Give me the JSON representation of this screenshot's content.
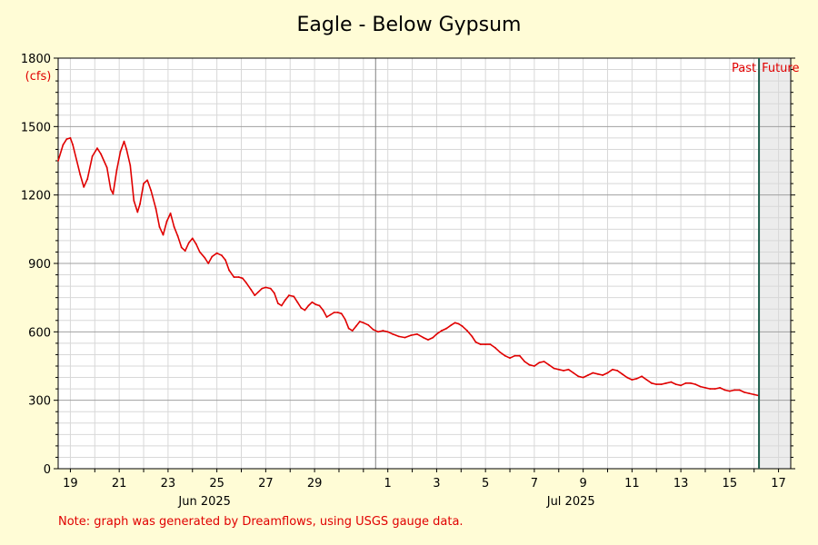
{
  "colors": {
    "background": "#fffcd6",
    "plot_background": "#ffffff",
    "future_background": "#ececec",
    "series_line": "#e00000",
    "now_marker": "#1e5e4e",
    "annotation_red": "#e00000",
    "grid_major": "#a0a0a0",
    "grid_minor": "#d8d8d8"
  },
  "chart_data": {
    "type": "line",
    "title": "Eagle - Below Gypsum",
    "ylabel": "(cfs)",
    "ylim": [
      0,
      1800
    ],
    "y_major_ticks": [
      0,
      300,
      600,
      900,
      1200,
      1500,
      1800
    ],
    "y_minor_step": 50,
    "x_range_days": [
      -12.5,
      17.5
    ],
    "x_tick_labels": [
      {
        "day": -12,
        "label": "19"
      },
      {
        "day": -10,
        "label": "21"
      },
      {
        "day": -8,
        "label": "23"
      },
      {
        "day": -6,
        "label": "25"
      },
      {
        "day": -4,
        "label": "27"
      },
      {
        "day": -2,
        "label": "29"
      },
      {
        "day": 1,
        "label": "1"
      },
      {
        "day": 3,
        "label": "3"
      },
      {
        "day": 5,
        "label": "5"
      },
      {
        "day": 7,
        "label": "7"
      },
      {
        "day": 9,
        "label": "9"
      },
      {
        "day": 11,
        "label": "11"
      },
      {
        "day": 13,
        "label": "13"
      },
      {
        "day": 15,
        "label": "15"
      },
      {
        "day": 17,
        "label": "17"
      }
    ],
    "month_labels": [
      {
        "day": -6.5,
        "label": "Jun 2025"
      },
      {
        "day": 8.5,
        "label": "Jul 2025"
      }
    ],
    "month_boundary_day": 0.5,
    "now_day": 16.2,
    "past_label": "Past",
    "future_label": "Future",
    "series": [
      {
        "points": [
          [
            -12.5,
            1350
          ],
          [
            -12.3,
            1420
          ],
          [
            -12.15,
            1445
          ],
          [
            -12.0,
            1450
          ],
          [
            -11.9,
            1420
          ],
          [
            -11.6,
            1290
          ],
          [
            -11.45,
            1235
          ],
          [
            -11.3,
            1270
          ],
          [
            -11.1,
            1370
          ],
          [
            -10.9,
            1405
          ],
          [
            -10.75,
            1380
          ],
          [
            -10.5,
            1320
          ],
          [
            -10.35,
            1225
          ],
          [
            -10.25,
            1205
          ],
          [
            -10.1,
            1310
          ],
          [
            -9.95,
            1390
          ],
          [
            -9.8,
            1435
          ],
          [
            -9.7,
            1400
          ],
          [
            -9.55,
            1330
          ],
          [
            -9.4,
            1175
          ],
          [
            -9.25,
            1125
          ],
          [
            -9.15,
            1160
          ],
          [
            -9.0,
            1250
          ],
          [
            -8.85,
            1265
          ],
          [
            -8.7,
            1220
          ],
          [
            -8.5,
            1140
          ],
          [
            -8.35,
            1060
          ],
          [
            -8.2,
            1025
          ],
          [
            -8.05,
            1085
          ],
          [
            -7.9,
            1120
          ],
          [
            -7.75,
            1060
          ],
          [
            -7.6,
            1020
          ],
          [
            -7.45,
            970
          ],
          [
            -7.3,
            955
          ],
          [
            -7.15,
            990
          ],
          [
            -7.0,
            1010
          ],
          [
            -6.85,
            985
          ],
          [
            -6.7,
            950
          ],
          [
            -6.5,
            925
          ],
          [
            -6.35,
            900
          ],
          [
            -6.2,
            930
          ],
          [
            -6.0,
            945
          ],
          [
            -5.8,
            935
          ],
          [
            -5.65,
            915
          ],
          [
            -5.5,
            870
          ],
          [
            -5.3,
            840
          ],
          [
            -5.1,
            840
          ],
          [
            -4.95,
            835
          ],
          [
            -4.8,
            815
          ],
          [
            -4.6,
            785
          ],
          [
            -4.45,
            760
          ],
          [
            -4.3,
            775
          ],
          [
            -4.15,
            790
          ],
          [
            -4.0,
            795
          ],
          [
            -3.8,
            790
          ],
          [
            -3.65,
            770
          ],
          [
            -3.5,
            725
          ],
          [
            -3.35,
            715
          ],
          [
            -3.2,
            740
          ],
          [
            -3.05,
            760
          ],
          [
            -2.85,
            755
          ],
          [
            -2.7,
            730
          ],
          [
            -2.55,
            705
          ],
          [
            -2.4,
            695
          ],
          [
            -2.25,
            715
          ],
          [
            -2.1,
            730
          ],
          [
            -1.95,
            720
          ],
          [
            -1.8,
            715
          ],
          [
            -1.65,
            695
          ],
          [
            -1.5,
            665
          ],
          [
            -1.35,
            675
          ],
          [
            -1.2,
            685
          ],
          [
            -1.05,
            685
          ],
          [
            -0.9,
            680
          ],
          [
            -0.75,
            655
          ],
          [
            -0.6,
            615
          ],
          [
            -0.45,
            605
          ],
          [
            -0.3,
            625
          ],
          [
            -0.15,
            645
          ],
          [
            0.0,
            640
          ],
          [
            0.2,
            630
          ],
          [
            0.4,
            610
          ],
          [
            0.6,
            600
          ],
          [
            0.8,
            605
          ],
          [
            1.0,
            600
          ],
          [
            1.2,
            590
          ],
          [
            1.45,
            580
          ],
          [
            1.7,
            575
          ],
          [
            1.95,
            585
          ],
          [
            2.2,
            590
          ],
          [
            2.45,
            575
          ],
          [
            2.65,
            565
          ],
          [
            2.85,
            575
          ],
          [
            3.0,
            590
          ],
          [
            3.2,
            605
          ],
          [
            3.4,
            615
          ],
          [
            3.6,
            630
          ],
          [
            3.75,
            640
          ],
          [
            3.9,
            635
          ],
          [
            4.05,
            625
          ],
          [
            4.25,
            605
          ],
          [
            4.45,
            580
          ],
          [
            4.6,
            555
          ],
          [
            4.8,
            545
          ],
          [
            5.0,
            545
          ],
          [
            5.2,
            545
          ],
          [
            5.4,
            530
          ],
          [
            5.6,
            510
          ],
          [
            5.8,
            495
          ],
          [
            6.0,
            485
          ],
          [
            6.2,
            495
          ],
          [
            6.4,
            495
          ],
          [
            6.6,
            470
          ],
          [
            6.8,
            455
          ],
          [
            7.0,
            450
          ],
          [
            7.2,
            465
          ],
          [
            7.4,
            470
          ],
          [
            7.6,
            455
          ],
          [
            7.8,
            440
          ],
          [
            8.0,
            435
          ],
          [
            8.2,
            430
          ],
          [
            8.4,
            435
          ],
          [
            8.6,
            420
          ],
          [
            8.8,
            405
          ],
          [
            9.0,
            400
          ],
          [
            9.2,
            410
          ],
          [
            9.4,
            420
          ],
          [
            9.6,
            415
          ],
          [
            9.8,
            410
          ],
          [
            10.0,
            420
          ],
          [
            10.2,
            435
          ],
          [
            10.4,
            430
          ],
          [
            10.6,
            415
          ],
          [
            10.8,
            400
          ],
          [
            11.0,
            390
          ],
          [
            11.2,
            395
          ],
          [
            11.4,
            405
          ],
          [
            11.6,
            390
          ],
          [
            11.8,
            375
          ],
          [
            12.0,
            370
          ],
          [
            12.2,
            370
          ],
          [
            12.4,
            375
          ],
          [
            12.6,
            380
          ],
          [
            12.8,
            370
          ],
          [
            13.0,
            365
          ],
          [
            13.2,
            375
          ],
          [
            13.4,
            375
          ],
          [
            13.6,
            370
          ],
          [
            13.8,
            360
          ],
          [
            14.0,
            355
          ],
          [
            14.2,
            350
          ],
          [
            14.4,
            350
          ],
          [
            14.6,
            355
          ],
          [
            14.8,
            345
          ],
          [
            15.0,
            340
          ],
          [
            15.2,
            345
          ],
          [
            15.4,
            345
          ],
          [
            15.6,
            335
          ],
          [
            15.8,
            330
          ],
          [
            16.0,
            325
          ],
          [
            16.2,
            320
          ]
        ]
      }
    ]
  },
  "footer": {
    "note": "Note: graph was generated by Dreamflows, using USGS gauge data."
  }
}
